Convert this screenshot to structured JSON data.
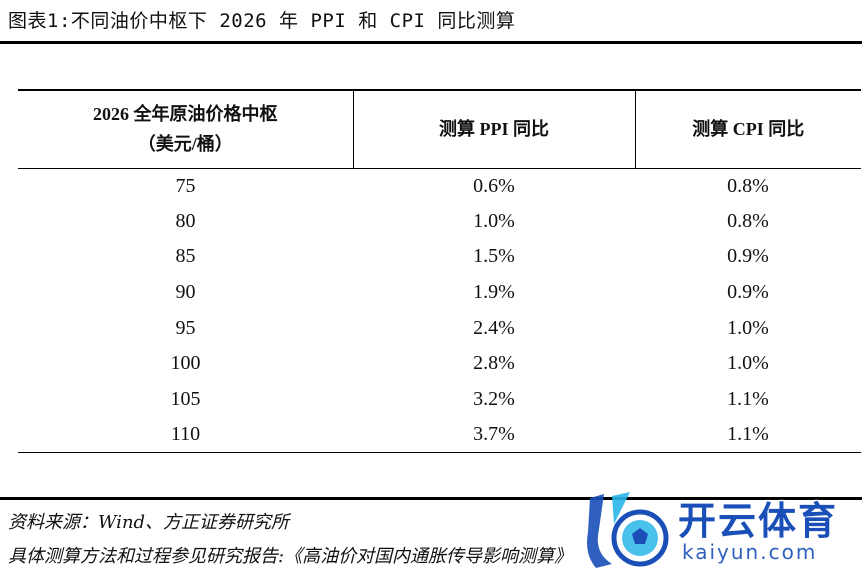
{
  "title": "图表1:不同油价中枢下 2026 年 PPI 和 CPI 同比测算",
  "table": {
    "headers": [
      "2026 全年原油价格中枢",
      "（美元/桶）",
      "测算 PPI 同比",
      "测算 CPI 同比"
    ],
    "rows": [
      [
        "75",
        "0.6%",
        "0.8%"
      ],
      [
        "80",
        "1.0%",
        "0.8%"
      ],
      [
        "85",
        "1.5%",
        "0.9%"
      ],
      [
        "90",
        "1.9%",
        "0.9%"
      ],
      [
        "95",
        "2.4%",
        "1.0%"
      ],
      [
        "100",
        "2.8%",
        "1.0%"
      ],
      [
        "105",
        "3.2%",
        "1.1%"
      ],
      [
        "110",
        "3.7%",
        "1.1%"
      ]
    ]
  },
  "notes": {
    "source": "资料来源：Wind、方正证券研究所",
    "method": "具体测算方法和过程参见研究报告:《高油价对国内通胀传导影响测算》"
  },
  "watermark": {
    "brand": "开云体育",
    "url": "kaiyun.com",
    "colors": {
      "blue": "#1a4fb8",
      "cyan": "#29b6e8"
    }
  }
}
